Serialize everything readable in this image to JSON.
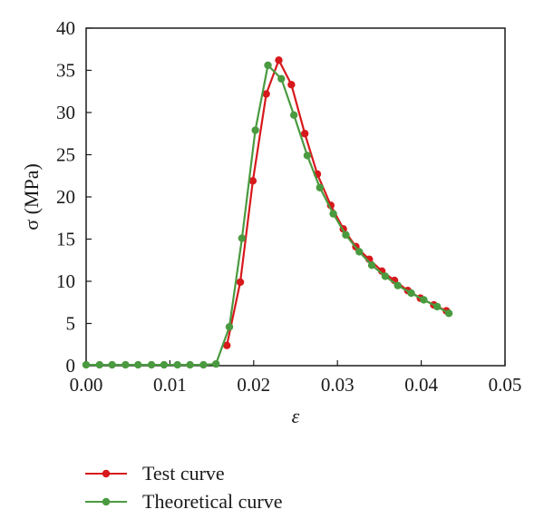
{
  "chart_data": {
    "type": "line",
    "xlabel": "ε",
    "ylabel": "σ (MPa)",
    "xlim": [
      0,
      0.05
    ],
    "ylim": [
      0,
      40
    ],
    "x_ticks": [
      "0.00",
      "0.01",
      "0.02",
      "0.03",
      "0.04",
      "0.05"
    ],
    "y_ticks": [
      "0",
      "5",
      "10",
      "15",
      "20",
      "25",
      "30",
      "35",
      "40"
    ],
    "grid": false,
    "legend_position": "bottom-left",
    "series": [
      {
        "name": "Test curve",
        "color": "#d7191c",
        "x": [
          0.0168,
          0.0184,
          0.0199,
          0.0215,
          0.023,
          0.0245,
          0.0261,
          0.0276,
          0.0292,
          0.0307,
          0.0322,
          0.0338,
          0.0353,
          0.0368,
          0.0384,
          0.0399,
          0.0415,
          0.043
        ],
        "y": [
          2.4,
          9.9,
          21.9,
          32.2,
          36.2,
          33.3,
          27.5,
          22.7,
          19.0,
          16.2,
          14.1,
          12.6,
          11.2,
          10.1,
          8.9,
          8.0,
          7.2,
          6.5
        ]
      },
      {
        "name": "Theoretical curve",
        "color": "#4a9a3f",
        "x": [
          0.0,
          0.0016,
          0.0031,
          0.0047,
          0.0062,
          0.0078,
          0.0093,
          0.0109,
          0.0124,
          0.014,
          0.0155,
          0.0171,
          0.0186,
          0.0202,
          0.0217,
          0.0233,
          0.0248,
          0.0264,
          0.0279,
          0.0295,
          0.031,
          0.0326,
          0.0341,
          0.0357,
          0.0372,
          0.0388,
          0.0403,
          0.0419,
          0.0433
        ],
        "y": [
          0.1,
          0.1,
          0.1,
          0.1,
          0.1,
          0.1,
          0.1,
          0.1,
          0.1,
          0.1,
          0.2,
          4.6,
          15.1,
          27.9,
          35.6,
          34.0,
          29.7,
          24.9,
          21.1,
          18.0,
          15.5,
          13.5,
          11.9,
          10.6,
          9.5,
          8.6,
          7.8,
          7.0,
          6.2
        ]
      }
    ]
  }
}
